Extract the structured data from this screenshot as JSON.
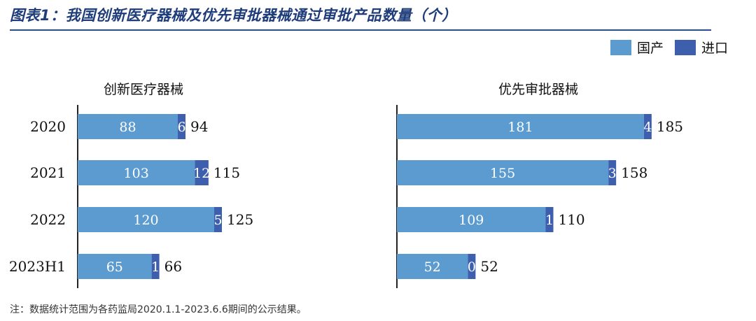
{
  "title": "图表1：我国创新医疗器械及优先审批器械通过审批产品数量（个）",
  "note": "注：数据统计范围为各药监局2020.1.1-2023.6.6期间的公示结果。",
  "legend": [
    {
      "label": "国产",
      "color": "#5b9bd0"
    },
    {
      "label": "进口",
      "color": "#3d5fae"
    }
  ],
  "colors": {
    "domestic": "#5b9bd0",
    "import": "#3d5fae",
    "axis": "#222222",
    "title": "#1f3d7a"
  },
  "chart_data": [
    {
      "type": "bar",
      "orientation": "horizontal",
      "stacked": true,
      "title": "创新医疗器械",
      "categories": [
        "2020",
        "2021",
        "2022",
        "2023H1"
      ],
      "series": [
        {
          "name": "国产",
          "values": [
            88,
            103,
            120,
            65
          ]
        },
        {
          "name": "进口",
          "values": [
            6,
            12,
            5,
            1
          ]
        }
      ],
      "totals": [
        94,
        115,
        125,
        66
      ],
      "xlim": [
        0,
        128
      ]
    },
    {
      "type": "bar",
      "orientation": "horizontal",
      "stacked": true,
      "title": "优先审批器械",
      "categories": [
        "2020",
        "2021",
        "2022",
        "2023H1"
      ],
      "series": [
        {
          "name": "国产",
          "values": [
            181,
            155,
            109,
            52
          ]
        },
        {
          "name": "进口",
          "values": [
            4,
            3,
            1,
            0
          ]
        }
      ],
      "totals": [
        185,
        158,
        110,
        52
      ],
      "xlim": [
        0,
        198
      ]
    }
  ]
}
